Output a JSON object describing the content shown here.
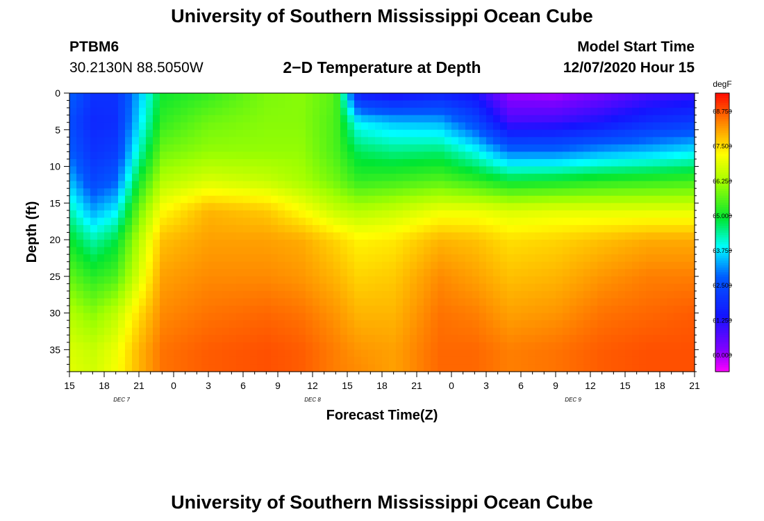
{
  "header": {
    "title_top": "University of Southern Mississippi Ocean Cube",
    "title_bottom": "University of Southern Mississippi Ocean Cube",
    "station_id": "PTBM6",
    "station_coords": "30.2130N 88.5050W",
    "plot_title": "2−D Temperature at Depth",
    "model_start_label": "Model Start Time",
    "model_start_value": "12/07/2020 Hour 15"
  },
  "chart_data": {
    "type": "heatmap",
    "title": "2−D Temperature at Depth",
    "xlabel": "Forecast Time(Z)",
    "ylabel": "Depth (ft)",
    "x_tick_labels": [
      "15",
      "18",
      "21",
      "0",
      "3",
      "6",
      "9",
      "12",
      "15",
      "18",
      "21",
      "0",
      "3",
      "6",
      "9",
      "12",
      "15",
      "18",
      "21"
    ],
    "x_hours_from_start": [
      0,
      3,
      6,
      9,
      12,
      15,
      18,
      21,
      24,
      27,
      30,
      33,
      36,
      39,
      42,
      45,
      48,
      51,
      54
    ],
    "date_labels": [
      {
        "label": "DEC 7",
        "hours_from_start": 4.5
      },
      {
        "label": "DEC 8",
        "hours_from_start": 21
      },
      {
        "label": "DEC 9",
        "hours_from_start": 43.5
      }
    ],
    "y_ticks": [
      0,
      5,
      10,
      15,
      20,
      25,
      30,
      35
    ],
    "ylim": [
      0,
      38
    ],
    "xlim": [
      0,
      54
    ],
    "colorbar": {
      "unit": "degF",
      "tick_values": [
        60.0,
        61.25,
        62.5,
        63.75,
        65.0,
        66.25,
        67.5,
        68.75
      ],
      "tick_labels": [
        "60.000",
        "61.250",
        "62.500",
        "63.750",
        "65.000",
        "66.250",
        "67.500",
        "68.750"
      ],
      "range": [
        59.4,
        69.4
      ]
    },
    "depths_ft": [
      0,
      4,
      8,
      12,
      16,
      20,
      25,
      30,
      35,
      38
    ],
    "temperature_columns": [
      {
        "hour": 0,
        "values": [
          62.9,
          62.5,
          62.8,
          63.5,
          64.3,
          65.0,
          65.7,
          66.4,
          66.8,
          66.9
        ]
      },
      {
        "hour": 2,
        "values": [
          62.0,
          61.8,
          62.0,
          62.4,
          63.3,
          64.3,
          65.2,
          66.0,
          66.6,
          66.7
        ]
      },
      {
        "hour": 4,
        "values": [
          62.0,
          61.9,
          62.2,
          62.8,
          63.8,
          64.8,
          65.5,
          66.5,
          67.0,
          67.1
        ]
      },
      {
        "hour": 6,
        "values": [
          63.4,
          63.7,
          64.2,
          65.0,
          65.8,
          66.4,
          66.8,
          67.5,
          67.9,
          67.9
        ]
      },
      {
        "hour": 8,
        "values": [
          65.0,
          65.3,
          65.8,
          66.4,
          67.2,
          67.8,
          68.1,
          68.3,
          68.5,
          68.5
        ]
      },
      {
        "hour": 12,
        "values": [
          65.3,
          65.8,
          66.1,
          66.8,
          67.9,
          68.1,
          68.3,
          68.5,
          68.7,
          68.7
        ]
      },
      {
        "hour": 17,
        "values": [
          65.9,
          66.0,
          66.1,
          66.6,
          67.7,
          68.1,
          68.3,
          68.6,
          68.8,
          68.8
        ]
      },
      {
        "hour": 20,
        "values": [
          66.0,
          66.0,
          66.1,
          66.3,
          67.2,
          68.0,
          68.2,
          68.5,
          68.7,
          68.7
        ]
      },
      {
        "hour": 23,
        "values": [
          65.6,
          65.5,
          65.5,
          65.8,
          66.6,
          67.6,
          67.9,
          68.2,
          68.4,
          68.4
        ]
      },
      {
        "hour": 25,
        "values": [
          61.5,
          63.8,
          64.7,
          65.3,
          66.4,
          67.3,
          67.6,
          67.9,
          68.2,
          68.3
        ]
      },
      {
        "hour": 28,
        "values": [
          61.2,
          63.5,
          64.5,
          65.4,
          66.6,
          67.4,
          67.7,
          67.9,
          68.1,
          68.1
        ]
      },
      {
        "hour": 32,
        "values": [
          61.6,
          63.4,
          64.6,
          65.6,
          67.0,
          67.9,
          68.3,
          68.5,
          68.6,
          68.6
        ]
      },
      {
        "hour": 35,
        "values": [
          61.3,
          62.5,
          64.0,
          65.3,
          67.0,
          67.8,
          68.1,
          68.4,
          68.6,
          68.6
        ]
      },
      {
        "hour": 38,
        "values": [
          60.0,
          60.9,
          63.0,
          64.9,
          66.8,
          67.5,
          67.8,
          68.1,
          68.4,
          68.4
        ]
      },
      {
        "hour": 42,
        "values": [
          59.9,
          61.0,
          63.0,
          65.0,
          66.9,
          67.6,
          67.9,
          68.2,
          68.5,
          68.5
        ]
      },
      {
        "hour": 46,
        "values": [
          60.3,
          61.4,
          63.3,
          65.2,
          66.9,
          67.8,
          68.2,
          68.5,
          68.7,
          68.7
        ]
      },
      {
        "hour": 50,
        "values": [
          60.8,
          61.9,
          63.5,
          65.3,
          66.9,
          68.0,
          68.4,
          68.6,
          68.8,
          68.8
        ]
      },
      {
        "hour": 54,
        "values": [
          61.0,
          62.2,
          63.8,
          65.4,
          66.9,
          68.0,
          68.4,
          68.7,
          68.8,
          68.8
        ]
      }
    ]
  }
}
